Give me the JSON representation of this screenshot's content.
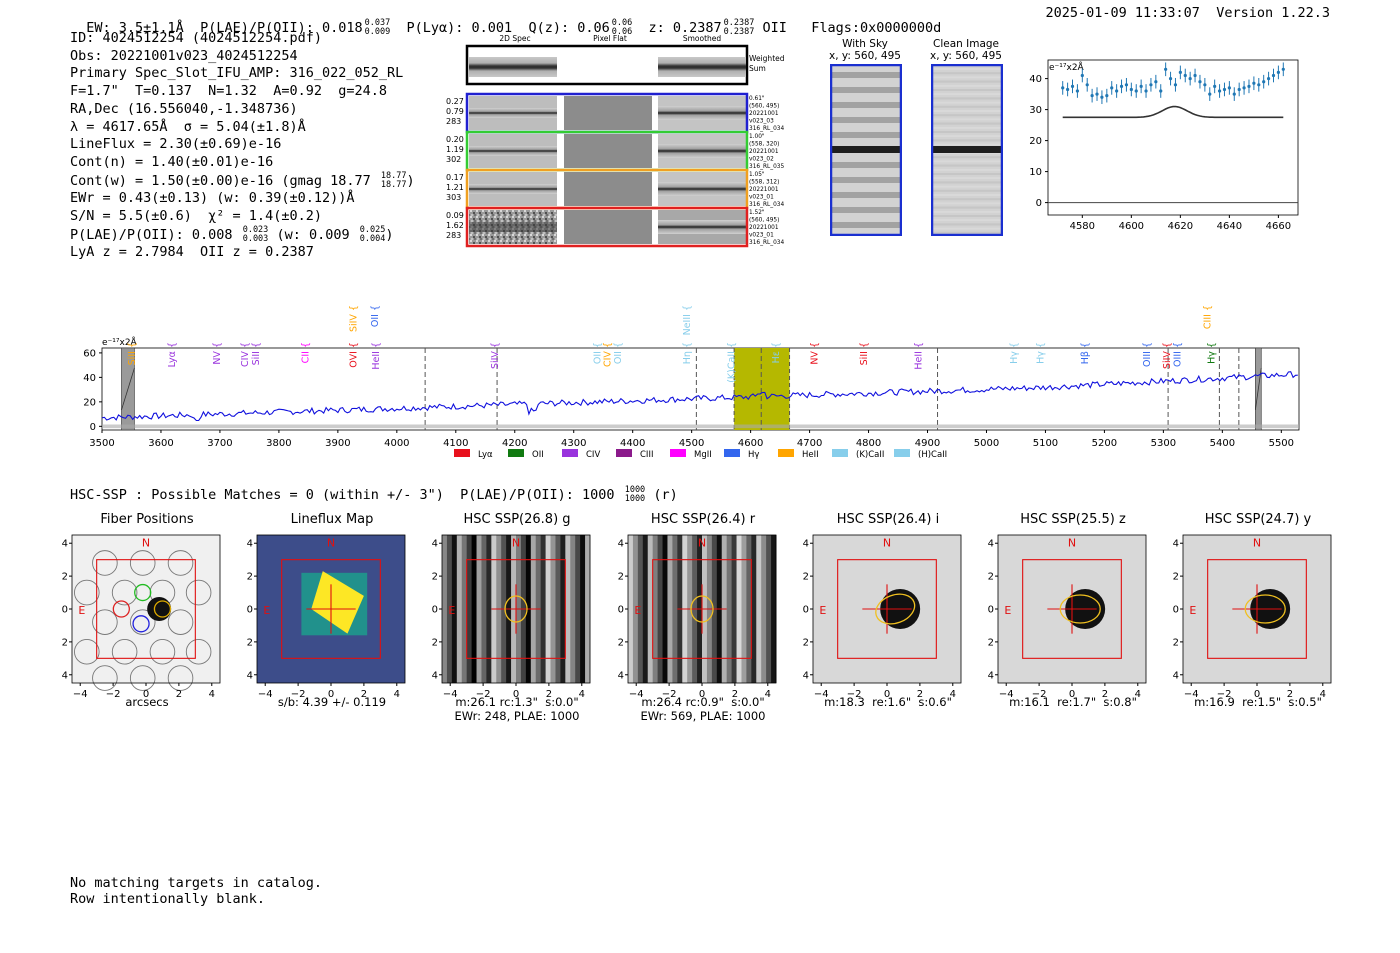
{
  "header": {
    "ew": "EW: 3.5±1.1Å",
    "plae_label": "P(LAE)/P(OII): 0.018",
    "plae_up": "0.037",
    "plae_lo": "0.009",
    "plya": "P(Lyα): 0.001",
    "qz": "Q(z): 0.06",
    "qz_up": "0.06",
    "qz_lo": "0.06",
    "z_label": "z: 0.2387",
    "z_up": "0.2387",
    "z_lo": "0.2387",
    "z_line": "OII",
    "flags": "Flags:0x0000000d",
    "datetime": "2025-01-09 11:33:07",
    "version": "Version 1.22.3"
  },
  "info": {
    "id": "ID: 4024512254 (4024512254.pdf)",
    "obs": "Obs: 20221001v023_4024512254",
    "primary": "Primary Spec_Slot_IFU_AMP: 316_022_052_RL",
    "fwhm": "F=1.7\"  T=0.137  N=1.32  A=0.92  g=24.8",
    "radec": "RA,Dec (16.556040,-1.348736)",
    "lambda": "λ = 4617.65Å  σ = 5.04(±1.8)Å",
    "lineflux": "LineFlux = 2.30(±0.69)e-16",
    "contn": "Cont(n) = 1.40(±0.01)e-16",
    "contw": "Cont(w) = 1.50(±0.00)e-16 (gmag 18.77",
    "gmag_up": "18.77",
    "gmag_lo": "18.77",
    "contw_close": ")",
    "ewr": "EWr = 0.43(±0.13) (w: 0.39(±0.12))Å",
    "sn": "S/N = 5.5(±0.6)  χ² = 1.4(±0.2)",
    "plae2": "P(LAE)/P(OII): 0.008",
    "plae2_up": "0.023",
    "plae2_lo": "0.003",
    "plae2_w": "(w: 0.009",
    "plae2_w_up": "0.025",
    "plae2_w_lo": "0.004",
    "plae2_close": ")",
    "lyaz": "LyA z = 2.7984  OII z = 0.2387"
  },
  "spec2d": {
    "col_titles": [
      "2D Spec",
      "Pixel Flat",
      "Smoothed"
    ],
    "weighted_sum": [
      "Weighted",
      "Sum"
    ],
    "rows": [
      {
        "left": [
          "0.27",
          "0.79",
          "283"
        ],
        "right": [
          "0.61\"",
          "(560, 495)",
          "20221001",
          "v023_03",
          "316_RL_034"
        ],
        "color": "#2020d0"
      },
      {
        "left": [
          "0.20",
          "1.19",
          "302"
        ],
        "right": [
          "1.00\"",
          "(558, 320)",
          "20221001",
          "v023_02",
          "316_RL_035"
        ],
        "color": "#33cc33"
      },
      {
        "left": [
          "0.17",
          "1.21",
          "303"
        ],
        "right": [
          "1.05\"",
          "(558, 312)",
          "20221001",
          "v023_01",
          "316_RL_034"
        ],
        "color": "#f0a020"
      },
      {
        "left": [
          "0.09",
          "1.62",
          "283"
        ],
        "right": [
          "1.52\"",
          "(560, 495)",
          "20221001",
          "v023_01",
          "316_RL_034"
        ],
        "color": "#e02020"
      }
    ]
  },
  "cutouts": {
    "with_sky": [
      "With Sky",
      "x, y: 560, 495"
    ],
    "clean": [
      "Clean Image",
      "x, y: 560, 495"
    ]
  },
  "zoom_spec": {
    "unit": "e⁻¹⁷x2Å",
    "x_ticks": [
      "4580",
      "4600",
      "4620",
      "4640",
      "4660"
    ],
    "y_ticks": [
      "0",
      "10",
      "20",
      "30",
      "40"
    ],
    "points_x": [
      4572,
      4574,
      4576,
      4578,
      4580,
      4582,
      4584,
      4586,
      4588,
      4590,
      4592,
      4594,
      4596,
      4598,
      4600,
      4602,
      4604,
      4606,
      4608,
      4610,
      4612,
      4614,
      4616,
      4618,
      4620,
      4622,
      4624,
      4626,
      4628,
      4630,
      4632,
      4634,
      4636,
      4638,
      4640,
      4642,
      4644,
      4646,
      4648,
      4650,
      4652,
      4654,
      4656,
      4658,
      4660,
      4662
    ],
    "points_y": [
      37,
      36.5,
      37.5,
      36,
      41,
      38,
      34.5,
      35,
      34,
      34.5,
      37,
      36,
      37.5,
      38,
      36.5,
      36,
      37.5,
      36,
      38,
      39,
      36,
      43,
      40,
      38,
      42,
      41,
      40,
      41,
      39,
      38,
      35,
      37.5,
      36,
      36.5,
      37,
      35,
      36.5,
      37,
      37.5,
      38.5,
      38,
      39,
      40,
      41,
      42,
      43
    ],
    "errors": 2.2,
    "model_baseline": 27.5,
    "model_peak": 31,
    "model_center": 4617.65
  },
  "full_spec": {
    "unit": "e⁻¹⁷x2Å",
    "x_ticks": [
      "3500",
      "3600",
      "3700",
      "3800",
      "3900",
      "4000",
      "4100",
      "4200",
      "4300",
      "4400",
      "4500",
      "4600",
      "4700",
      "4800",
      "4900",
      "5000",
      "5100",
      "5200",
      "5300",
      "5400",
      "5500"
    ],
    "y_ticks": [
      "0",
      "20",
      "40",
      "60"
    ],
    "legend": [
      {
        "label": "Lyα",
        "color": "#e8101c"
      },
      {
        "label": "OII",
        "color": "#117a11"
      },
      {
        "label": "CIV",
        "color": "#9933dd"
      },
      {
        "label": "CIII",
        "color": "#8b1a8b"
      },
      {
        "label": "MgII",
        "color": "#ff00ff"
      },
      {
        "label": "Hγ",
        "color": "#3366ee"
      },
      {
        "label": "HeII",
        "color": "#ffa500"
      },
      {
        "label": "(K)CaII",
        "color": "#87ceeb"
      },
      {
        "label": "(H)CaII",
        "color": "#87ceeb"
      }
    ],
    "line_labels": [
      {
        "text": "SiII",
        "x": 3556,
        "row": 0,
        "color": "#ffa500"
      },
      {
        "text": "Lyα",
        "x": 3624,
        "row": 0,
        "color": "#9933dd"
      },
      {
        "text": "NV",
        "x": 3700,
        "row": 0,
        "color": "#9933dd"
      },
      {
        "text": "CIV",
        "x": 3748,
        "row": 0,
        "color": "#9933dd"
      },
      {
        "text": "SiII",
        "x": 3766,
        "row": 0,
        "color": "#9933dd"
      },
      {
        "text": "CII",
        "x": 3850,
        "row": 0,
        "color": "#ff00ff"
      },
      {
        "text": "OVI",
        "x": 3932,
        "row": 0,
        "color": "#e8101c"
      },
      {
        "text": "HeII",
        "x": 3970,
        "row": 0,
        "color": "#9933dd"
      },
      {
        "text": "SiIV",
        "x": 3932,
        "row": 1,
        "color": "#ffa500"
      },
      {
        "text": "OII",
        "x": 3968,
        "row": 1,
        "color": "#3366ee"
      },
      {
        "text": "SiIV",
        "x": 4172,
        "row": 0,
        "color": "#9933dd"
      },
      {
        "text": "OII",
        "x": 4345,
        "row": 0,
        "color": "#87ceeb"
      },
      {
        "text": "CIV",
        "x": 4362,
        "row": 0,
        "color": "#ffa500"
      },
      {
        "text": "OII",
        "x": 4380,
        "row": 0,
        "color": "#87ceeb"
      },
      {
        "text": "Hη",
        "x": 4497,
        "row": 0,
        "color": "#87ceeb"
      },
      {
        "text": "NeIII",
        "x": 4497,
        "row": 1,
        "color": "#87ceeb"
      },
      {
        "text": "(K)CaII",
        "x": 4573,
        "row": 0,
        "color": "#87ceeb"
      },
      {
        "text": "Hε",
        "x": 4648,
        "row": 0,
        "color": "#87ceeb"
      },
      {
        "text": "NV",
        "x": 4713,
        "row": 0,
        "color": "#e8101c"
      },
      {
        "text": "SiII",
        "x": 4797,
        "row": 0,
        "color": "#e8101c"
      },
      {
        "text": "HeII",
        "x": 4890,
        "row": 0,
        "color": "#9933dd"
      },
      {
        "text": "Hγ",
        "x": 5052,
        "row": 0,
        "color": "#87ceeb"
      },
      {
        "text": "Hγ",
        "x": 5097,
        "row": 0,
        "color": "#87ceeb"
      },
      {
        "text": "Hβ",
        "x": 5172,
        "row": 0,
        "color": "#3366ee"
      },
      {
        "text": "OIII",
        "x": 5277,
        "row": 0,
        "color": "#3366ee"
      },
      {
        "text": "SiIV",
        "x": 5311,
        "row": 0,
        "color": "#e8101c"
      },
      {
        "text": "OIII",
        "x": 5329,
        "row": 0,
        "color": "#3366ee"
      },
      {
        "text": "Hγ",
        "x": 5387,
        "row": 0,
        "color": "#117a11"
      },
      {
        "text": "CIII",
        "x": 5380,
        "row": 1,
        "color": "#ffa500"
      }
    ],
    "dashed_lines": [
      4048,
      4170,
      4508,
      4618,
      4917,
      5308,
      5395,
      5428
    ],
    "shade_band": [
      4572,
      4666
    ],
    "grey_bands": [
      [
        3533,
        3555
      ],
      [
        5456,
        5466
      ]
    ]
  },
  "hsc": {
    "summary": "HSC-SSP : Possible Matches = 0 (within +/- 3\")  P(LAE)/P(OII): 1000",
    "summary_up": "1000",
    "summary_lo": "1000",
    "summary_tail": "(r)",
    "axis_ticks": [
      "−4",
      "−2",
      "0",
      "2",
      "4"
    ],
    "north": "N",
    "east": "E",
    "panels": [
      {
        "title": "Fiber Positions",
        "caption": [
          "arcsecs"
        ]
      },
      {
        "title": "Lineflux Map",
        "caption": [
          "s/b: 4.39 +/- 0.119"
        ]
      },
      {
        "title": "HSC SSP(26.8) g",
        "caption": [
          "m:26.1 rc:1.3\"  s:0.0\"",
          "EWr: 248, PLAE: 1000"
        ]
      },
      {
        "title": "HSC SSP(26.4) r",
        "caption": [
          "m:26.4 rc:0.9\"  s:0.0\"",
          "EWr: 569, PLAE: 1000"
        ]
      },
      {
        "title": "HSC SSP(26.4) i",
        "caption": [
          "m:18.3  re:1.6\"  s:0.6\""
        ]
      },
      {
        "title": "HSC SSP(25.5) z",
        "caption": [
          "m:16.1  re:1.7\"  s:0.8\""
        ]
      },
      {
        "title": "HSC SSP(24.7) y",
        "caption": [
          "m:16.9  re:1.5\"  s:0.5\""
        ]
      }
    ]
  },
  "footer": {
    "line1": "No matching targets in catalog.",
    "line2": "Row intentionally blank."
  }
}
